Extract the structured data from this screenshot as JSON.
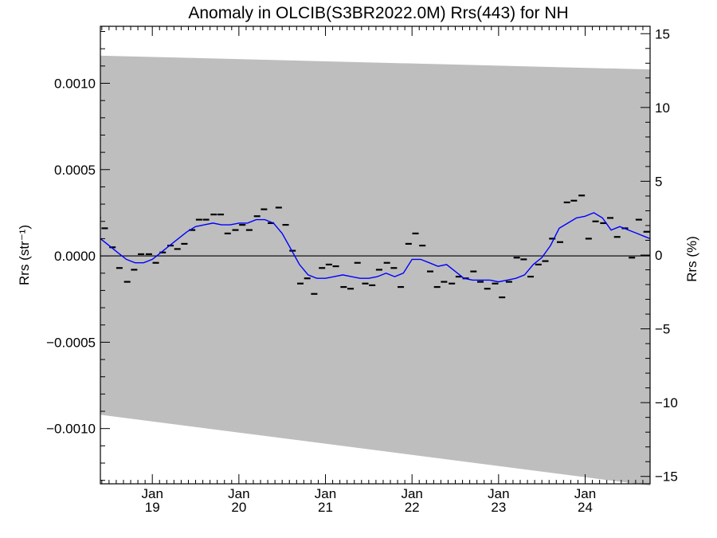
{
  "chart_data": {
    "type": "line",
    "title": "Anomaly in OLCIB(S3BR2022.0M) Rrs(443) for NH",
    "ylabel_left": "Rrs (str⁻¹)",
    "ylabel_right": "Rrs (%)",
    "xlim": [
      2018.4,
      2024.75
    ],
    "ylim_left": [
      -0.00132,
      0.00133
    ],
    "ylim_right": [
      -15.5,
      15.5
    ],
    "x_ticks": [
      {
        "x": 2019.0,
        "month": "Jan",
        "year": "19"
      },
      {
        "x": 2020.0,
        "month": "Jan",
        "year": "20"
      },
      {
        "x": 2021.0,
        "month": "Jan",
        "year": "21"
      },
      {
        "x": 2022.0,
        "month": "Jan",
        "year": "22"
      },
      {
        "x": 2023.0,
        "month": "Jan",
        "year": "23"
      },
      {
        "x": 2024.0,
        "month": "Jan",
        "year": "24"
      }
    ],
    "y_ticks_left": [
      {
        "v": 0.001,
        "label": "0.0010"
      },
      {
        "v": 0.0005,
        "label": "0.0005"
      },
      {
        "v": 0.0,
        "label": "0.0000"
      },
      {
        "v": -0.0005,
        "label": "−0.0005"
      },
      {
        "v": -0.001,
        "label": "−0.0010"
      }
    ],
    "y_ticks_right": [
      {
        "v": 15,
        "label": "15"
      },
      {
        "v": 10,
        "label": "10"
      },
      {
        "v": 5,
        "label": "5"
      },
      {
        "v": 0,
        "label": "0"
      },
      {
        "v": -5,
        "label": "−5"
      },
      {
        "v": -10,
        "label": "−10"
      },
      {
        "v": -15,
        "label": "−15"
      }
    ],
    "band": {
      "upper": [
        [
          2018.4,
          0.00116
        ],
        [
          2024.75,
          0.00108
        ]
      ],
      "lower": [
        [
          2018.4,
          -0.00092
        ],
        [
          2024.75,
          -0.00133
        ]
      ],
      "color": "#bebebe"
    },
    "monthly_points": {
      "x": [
        2018.37,
        2018.45,
        2018.54,
        2018.62,
        2018.71,
        2018.79,
        2018.87,
        2018.96,
        2019.04,
        2019.12,
        2019.21,
        2019.29,
        2019.37,
        2019.46,
        2019.54,
        2019.62,
        2019.71,
        2019.79,
        2019.87,
        2019.96,
        2020.04,
        2020.12,
        2020.21,
        2020.29,
        2020.37,
        2020.46,
        2020.54,
        2020.62,
        2020.71,
        2020.79,
        2020.87,
        2020.96,
        2021.04,
        2021.12,
        2021.21,
        2021.29,
        2021.37,
        2021.46,
        2021.54,
        2021.62,
        2021.71,
        2021.79,
        2021.87,
        2021.96,
        2022.04,
        2022.12,
        2022.21,
        2022.29,
        2022.37,
        2022.46,
        2022.54,
        2022.62,
        2022.71,
        2022.79,
        2022.87,
        2022.96,
        2023.04,
        2023.12,
        2023.21,
        2023.29,
        2023.37,
        2023.46,
        2023.54,
        2023.62,
        2023.71,
        2023.79,
        2023.87,
        2023.96,
        2024.04,
        2024.12,
        2024.21,
        2024.29,
        2024.37,
        2024.46,
        2024.54,
        2024.62,
        2024.71
      ],
      "y": [
        0.00022,
        0.00016,
        5e-05,
        -7e-05,
        -0.00015,
        -8e-05,
        1e-05,
        1e-05,
        -4e-05,
        2e-05,
        6e-05,
        4e-05,
        7e-05,
        0.00015,
        0.00021,
        0.00021,
        0.00024,
        0.00024,
        0.00013,
        0.00015,
        0.00018,
        0.00015,
        0.00023,
        0.00027,
        0.00019,
        0.00028,
        0.00018,
        3e-05,
        -0.00016,
        -0.00013,
        -0.00022,
        -7e-05,
        -5e-05,
        -6e-05,
        -0.00018,
        -0.00019,
        -4e-05,
        -0.00016,
        -0.00017,
        -8e-05,
        -4e-05,
        -7e-05,
        -0.00018,
        7e-05,
        0.00013,
        6e-05,
        -9e-05,
        -0.00018,
        -0.00015,
        -0.00016,
        -0.00012,
        -0.00013,
        -9e-05,
        -0.00015,
        -0.00019,
        -0.00016,
        -0.00024,
        -0.00015,
        -1e-05,
        -2e-05,
        -0.00012,
        -5e-05,
        -3e-05,
        0.0001,
        8e-05,
        0.00031,
        0.00032,
        0.00035,
        0.0001,
        0.0002,
        0.00019,
        0.00022,
        0.00011,
        0.00016,
        -1e-05,
        0.00021,
        0.00014
      ]
    },
    "running_mean": {
      "color": "#0000ff",
      "x": [
        2018.4,
        2018.5,
        2018.6,
        2018.7,
        2018.8,
        2018.9,
        2019.0,
        2019.1,
        2019.2,
        2019.3,
        2019.4,
        2019.5,
        2019.6,
        2019.7,
        2019.8,
        2019.9,
        2020.0,
        2020.1,
        2020.2,
        2020.3,
        2020.4,
        2020.5,
        2020.6,
        2020.7,
        2020.8,
        2020.9,
        2021.0,
        2021.1,
        2021.2,
        2021.3,
        2021.4,
        2021.5,
        2021.6,
        2021.7,
        2021.8,
        2021.9,
        2022.0,
        2022.1,
        2022.2,
        2022.3,
        2022.4,
        2022.5,
        2022.6,
        2022.7,
        2022.8,
        2022.9,
        2023.0,
        2023.1,
        2023.2,
        2023.3,
        2023.4,
        2023.5,
        2023.6,
        2023.7,
        2023.8,
        2023.9,
        2024.0,
        2024.1,
        2024.2,
        2024.3,
        2024.4,
        2024.5,
        2024.6,
        2024.7,
        2024.75
      ],
      "y": [
        0.0001,
        6e-05,
        2e-05,
        -2e-05,
        -4e-05,
        -4e-05,
        -2e-05,
        2e-05,
        6e-05,
        0.0001,
        0.00014,
        0.00017,
        0.00018,
        0.00019,
        0.00018,
        0.00018,
        0.00019,
        0.00019,
        0.00021,
        0.00021,
        0.00019,
        0.00013,
        4e-05,
        -5e-05,
        -0.00011,
        -0.00013,
        -0.00013,
        -0.00012,
        -0.00011,
        -0.00012,
        -0.00013,
        -0.00013,
        -0.00012,
        -0.0001,
        -0.00012,
        -0.0001,
        -2e-05,
        -2e-05,
        -4e-05,
        -6e-05,
        -5e-05,
        -9e-05,
        -0.00013,
        -0.00014,
        -0.00014,
        -0.00014,
        -0.00015,
        -0.00014,
        -0.00013,
        -0.00011,
        -5e-05,
        -1e-05,
        6e-05,
        0.00016,
        0.00019,
        0.00022,
        0.00023,
        0.00025,
        0.00022,
        0.00015,
        0.00017,
        0.00015,
        0.00013,
        0.00011,
        0.0001
      ]
    },
    "zero_line": true,
    "grid": false
  }
}
